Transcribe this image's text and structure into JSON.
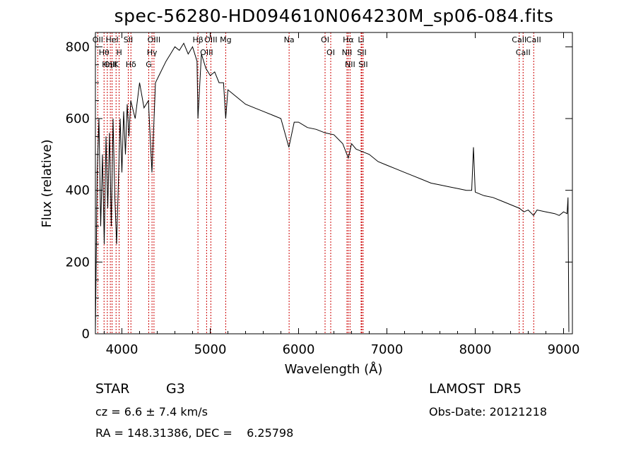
{
  "chart_data": {
    "type": "line",
    "title": "spec-56280-HD094610N064230M_sp06-084.fits",
    "xlabel": "Wavelength (Å)",
    "ylabel": "Flux (relative)",
    "xlim": [
      3700,
      9100
    ],
    "ylim": [
      0,
      840
    ],
    "xticks": [
      4000,
      5000,
      6000,
      7000,
      8000,
      9000
    ],
    "yticks": [
      0,
      200,
      400,
      600,
      800
    ],
    "grid": false,
    "series": [
      {
        "x": [
          3700,
          3720,
          3740,
          3760,
          3780,
          3800,
          3820,
          3840,
          3860,
          3880,
          3900,
          3920,
          3940,
          3960,
          3980,
          4000,
          4020,
          4040,
          4060,
          4080,
          4100,
          4150,
          4200,
          4250,
          4300,
          4340,
          4380,
          4420,
          4460,
          4500,
          4550,
          4600,
          4650,
          4700,
          4750,
          4800,
          4850,
          4861,
          4900,
          4950,
          5000,
          5050,
          5100,
          5150,
          5175,
          5200,
          5300,
          5400,
          5500,
          5600,
          5700,
          5800,
          5890,
          5950,
          6000,
          6100,
          6200,
          6300,
          6400,
          6500,
          6563,
          6600,
          6650,
          6700,
          6800,
          6900,
          7000,
          7100,
          7200,
          7300,
          7400,
          7500,
          7600,
          7700,
          7800,
          7900,
          7960,
          7980,
          8000,
          8050,
          8100,
          8200,
          8300,
          8400,
          8500,
          8550,
          8600,
          8660,
          8700,
          8800,
          8900,
          8950,
          9000,
          9040,
          9050,
          9060
        ],
        "y": [
          5,
          450,
          600,
          300,
          500,
          250,
          550,
          350,
          560,
          300,
          600,
          380,
          250,
          420,
          600,
          450,
          620,
          500,
          640,
          550,
          650,
          600,
          700,
          630,
          650,
          450,
          700,
          720,
          740,
          760,
          780,
          800,
          790,
          810,
          780,
          800,
          760,
          600,
          780,
          740,
          720,
          730,
          700,
          700,
          600,
          680,
          660,
          640,
          630,
          620,
          610,
          600,
          520,
          590,
          590,
          575,
          570,
          560,
          555,
          530,
          490,
          530,
          515,
          510,
          500,
          480,
          470,
          460,
          450,
          440,
          430,
          420,
          415,
          410,
          405,
          400,
          400,
          520,
          395,
          390,
          385,
          380,
          370,
          360,
          350,
          340,
          345,
          330,
          345,
          340,
          335,
          330,
          340,
          335,
          380,
          5
        ]
      }
    ],
    "lines": [
      {
        "label": "OII",
        "x": 3727
      },
      {
        "label": "Hθ",
        "x": 3798
      },
      {
        "label": "OIII",
        "x": 3869
      },
      {
        "label": "HeI",
        "x": 3889
      },
      {
        "label": "K",
        "x": 3934
      },
      {
        "label": "Hη",
        "x": 3835
      },
      {
        "label": "H",
        "x": 3969
      },
      {
        "label": "SII",
        "x": 4072
      },
      {
        "label": "Hδ",
        "x": 4102
      },
      {
        "label": "OIII",
        "x": 4363
      },
      {
        "label": "Hγ",
        "x": 4341
      },
      {
        "label": "G",
        "x": 4304
      },
      {
        "label": "Hβ",
        "x": 4861
      },
      {
        "label": "OIII",
        "x": 4959
      },
      {
        "label": "OIII",
        "x": 5007
      },
      {
        "label": "Mg",
        "x": 5175
      },
      {
        "label": "Na",
        "x": 5893
      },
      {
        "label": "OI",
        "x": 6300
      },
      {
        "label": "OI",
        "x": 6364
      },
      {
        "label": "Hα",
        "x": 6563
      },
      {
        "label": "NII",
        "x": 6548
      },
      {
        "label": "NII",
        "x": 6583
      },
      {
        "label": "Li",
        "x": 6708
      },
      {
        "label": "SII",
        "x": 6716
      },
      {
        "label": "SII",
        "x": 6731
      },
      {
        "label": "CaII",
        "x": 8498
      },
      {
        "label": "CaII",
        "x": 8542
      },
      {
        "label": "CaII",
        "x": 8662
      }
    ]
  },
  "info": {
    "object_class": "STAR",
    "subclass": "G3",
    "survey": "LAMOST  DR5",
    "redshift": "cz = 6.6 ± 7.4 km/s",
    "obs_date": "Obs-Date: 20121218",
    "coords": "RA = 148.31386, DEC =    6.25798"
  },
  "colors": {
    "spectrum": "#000000",
    "line_markers": "#cc0000"
  }
}
